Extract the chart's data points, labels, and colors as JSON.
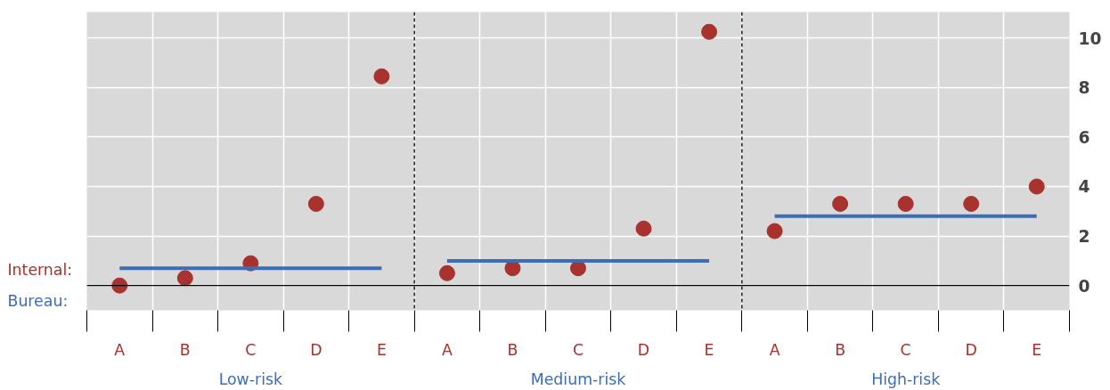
{
  "chart_data": {
    "type": "scatter",
    "categories": [
      "A",
      "B",
      "C",
      "D",
      "E",
      "A",
      "B",
      "C",
      "D",
      "E",
      "A",
      "B",
      "C",
      "D",
      "E"
    ],
    "series": [
      {
        "name": "Internal:",
        "color": "#a8322d",
        "marker": "circle",
        "values": [
          0.0,
          0.3,
          0.9,
          3.3,
          8.45,
          0.5,
          0.7,
          0.7,
          2.3,
          10.25,
          2.2,
          3.3,
          3.3,
          3.3,
          4.0
        ]
      },
      {
        "name": "Bureau:",
        "type": "line",
        "color": "#3d6db5",
        "values": [
          0.7,
          0.7,
          0.7,
          0.7,
          0.7,
          1.0,
          1.0,
          1.0,
          1.0,
          1.0,
          2.8,
          2.8,
          2.8,
          2.8,
          2.8
        ]
      }
    ],
    "annotations": [
      "Low-risk",
      "Medium-risk",
      "High-risk"
    ],
    "ref_lines": [
      {
        "axis": "y",
        "value": 0,
        "color": "#000000",
        "line_style": "solid"
      }
    ],
    "ylim": [
      -1,
      11.05
    ],
    "yticks": [
      0,
      2,
      4,
      6,
      8,
      10
    ],
    "grid": true
  }
}
